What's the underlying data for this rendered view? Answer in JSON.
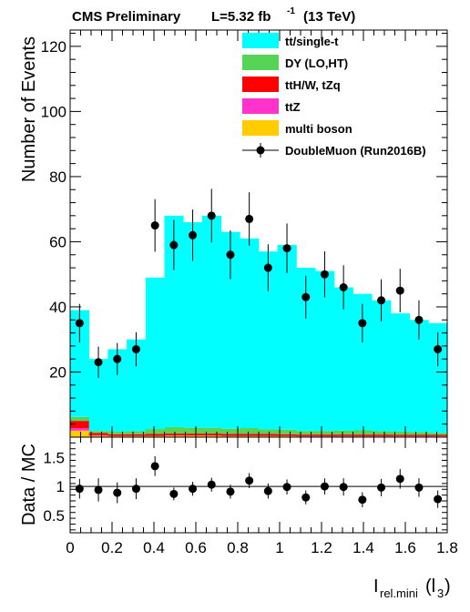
{
  "header": {
    "experiment": "CMS Preliminary",
    "lumi_prefix": "L=5.32 fb",
    "lumi_exp": "-1",
    "energy": "(13 TeV)"
  },
  "chart_data": [
    {
      "type": "bar",
      "stacked": true,
      "ylabel": "Number of Events",
      "xlim": [
        0,
        1.8
      ],
      "ylim": [
        0,
        125
      ],
      "yticks": [
        20,
        40,
        60,
        80,
        100,
        120
      ],
      "bin_edges": [
        0,
        0.09,
        0.18,
        0.27,
        0.36,
        0.45,
        0.54,
        0.63,
        0.72,
        0.81,
        0.9,
        0.99,
        1.08,
        1.17,
        1.26,
        1.35,
        1.44,
        1.53,
        1.62,
        1.71,
        1.8
      ],
      "series": [
        {
          "name": "multi boson",
          "color": "#ffcc00",
          "values": [
            2,
            0.4,
            0.3,
            0.3,
            0.3,
            0.4,
            0.4,
            0.4,
            0.3,
            0.3,
            0.3,
            0.3,
            0.2,
            0.2,
            0.2,
            0.2,
            0.2,
            0.2,
            0.2,
            0.2
          ]
        },
        {
          "name": "ttZ",
          "color": "#ff33cc",
          "values": [
            0.8,
            0.2,
            0.1,
            0.1,
            0.1,
            0.1,
            0.1,
            0.1,
            0.1,
            0.1,
            0.1,
            0.1,
            0.1,
            0.1,
            0.1,
            0.1,
            0.1,
            0.1,
            0.1,
            0.1
          ]
        },
        {
          "name": "ttH/W, tZq",
          "color": "#ff0000",
          "values": [
            2.2,
            0.7,
            0.5,
            0.5,
            0.6,
            0.6,
            0.6,
            0.6,
            0.6,
            0.6,
            0.6,
            0.5,
            0.5,
            0.5,
            0.5,
            0.5,
            0.5,
            0.4,
            0.4,
            0.4
          ]
        },
        {
          "name": "DY (LO,HT)",
          "color": "#55d455",
          "values": [
            1.2,
            0.6,
            0.8,
            0.9,
            1.5,
            2.0,
            1.8,
            1.8,
            1.6,
            1.8,
            1.4,
            1.4,
            1.1,
            1.1,
            1.2,
            1.3,
            1.0,
            1.0,
            0.9,
            0.6
          ]
        },
        {
          "name": "tt/single-t",
          "color": "#00ffff",
          "values": [
            32.8,
            22.1,
            25.3,
            28.2,
            46.5,
            64.9,
            63.1,
            65.1,
            60.4,
            58.2,
            54.6,
            56.7,
            50.1,
            49.1,
            44.0,
            41.9,
            40.2,
            36.3,
            34.4,
            33.7
          ]
        }
      ],
      "data_series": {
        "name": "DoubleMuon (Run2016B)",
        "x": [
          0.045,
          0.135,
          0.225,
          0.315,
          0.405,
          0.495,
          0.585,
          0.675,
          0.765,
          0.855,
          0.945,
          1.035,
          1.125,
          1.215,
          1.305,
          1.395,
          1.485,
          1.575,
          1.665,
          1.755
        ],
        "y": [
          35,
          23,
          24,
          27,
          65,
          59,
          62,
          68,
          56,
          67,
          52,
          58,
          43,
          50,
          46,
          35,
          42,
          45,
          36,
          27
        ]
      },
      "legend": {
        "placement": "top-right",
        "entries": [
          {
            "label": "tt/single-t",
            "color": "#00ffff",
            "kind": "box"
          },
          {
            "label": "DY (LO,HT)",
            "color": "#55d455",
            "kind": "box"
          },
          {
            "label": "ttH/W, tZq",
            "color": "#ff0000",
            "kind": "box"
          },
          {
            "label": "ttZ",
            "color": "#ff33cc",
            "kind": "box"
          },
          {
            "label": "multi boson",
            "color": "#ffcc00",
            "kind": "box"
          },
          {
            "label": "DoubleMuon (Run2016B)",
            "color": "#000000",
            "kind": "marker"
          }
        ]
      }
    },
    {
      "type": "scatter",
      "ylabel": "Data / MC",
      "xlabel_main": "I",
      "xlabel_sub": "rel.mini",
      "xlabel_arg": "(l",
      "xlabel_arg_sub": "3",
      "xlabel_close": ")",
      "xlim": [
        0,
        1.8
      ],
      "ylim": [
        0.2,
        1.85
      ],
      "xticks": [
        "0",
        "0.2",
        "0.4",
        "0.6",
        "0.8",
        "1",
        "1.2",
        "1.4",
        "1.6",
        "1.8"
      ],
      "yticks": [
        "0.5",
        "1",
        "1.5"
      ],
      "reference_line": 1,
      "x": [
        0.045,
        0.135,
        0.225,
        0.315,
        0.405,
        0.495,
        0.585,
        0.675,
        0.765,
        0.855,
        0.945,
        1.035,
        1.125,
        1.215,
        1.305,
        1.395,
        1.485,
        1.575,
        1.665,
        1.755
      ],
      "y": [
        0.96,
        0.94,
        0.89,
        0.96,
        1.35,
        0.87,
        0.96,
        1.03,
        0.91,
        1.1,
        0.92,
        0.99,
        0.81,
        1.0,
        0.99,
        0.77,
        0.98,
        1.13,
        0.98,
        0.78
      ],
      "yerr": [
        0.17,
        0.2,
        0.18,
        0.18,
        0.17,
        0.11,
        0.12,
        0.12,
        0.12,
        0.13,
        0.13,
        0.13,
        0.12,
        0.14,
        0.15,
        0.13,
        0.15,
        0.17,
        0.16,
        0.15
      ]
    }
  ]
}
